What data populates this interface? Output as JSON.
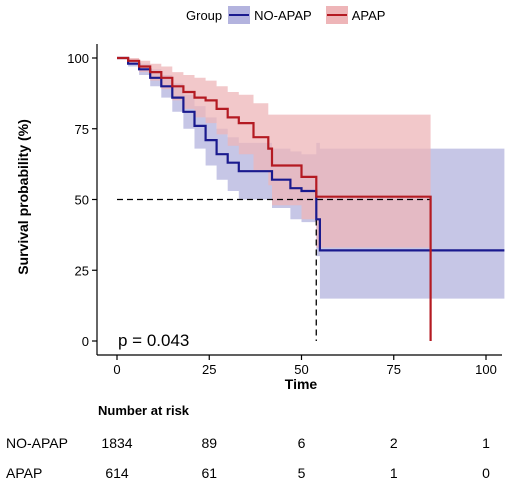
{
  "legend": {
    "title": "Group",
    "entries": [
      {
        "label": "NO-APAP",
        "color": "#1a1a8e",
        "fill": "#b3b3de"
      },
      {
        "label": "APAP",
        "color": "#b41a22",
        "fill": "#eeb5b8"
      }
    ]
  },
  "chart_data": {
    "type": "line",
    "subtype": "kaplan-meier survival curve with confidence bands",
    "xlabel": "Time",
    "ylabel": "Survival probability (%)",
    "xlim": [
      0,
      105
    ],
    "ylim": [
      0,
      100
    ],
    "xticks": [
      0,
      25,
      50,
      75,
      100
    ],
    "yticks": [
      0,
      25,
      50,
      75,
      100
    ],
    "grid": false,
    "legend_position": "top",
    "annotation": "p = 0.043",
    "median_reference": {
      "y": 50,
      "x_values": [
        54,
        85
      ]
    },
    "series": [
      {
        "name": "NO-APAP",
        "color": "#1a1a8e",
        "band_color": "#b3b3de",
        "x": [
          0,
          3,
          6,
          9,
          12,
          15,
          18,
          21,
          24,
          27,
          30,
          33,
          42,
          47,
          50,
          54,
          55,
          105
        ],
        "y": [
          100,
          98,
          96,
          93,
          90,
          86,
          81,
          76,
          71,
          66,
          63,
          60,
          57,
          54,
          53,
          43,
          32,
          32
        ],
        "lower": [
          100,
          97,
          94,
          90,
          86,
          81,
          75,
          68,
          62,
          57,
          53,
          50,
          47,
          43,
          42,
          30,
          15,
          15
        ],
        "upper": [
          100,
          99,
          98,
          96,
          94,
          91,
          87,
          83,
          79,
          75,
          72,
          70,
          68,
          67,
          66,
          70,
          68,
          68
        ]
      },
      {
        "name": "APAP",
        "color": "#b41a22",
        "band_color": "#eeb5b8",
        "x": [
          0,
          3,
          6,
          9,
          12,
          15,
          18,
          21,
          24,
          27,
          30,
          33,
          37,
          41,
          42,
          47,
          50,
          54,
          55,
          85
        ],
        "y": [
          100,
          99,
          97,
          95,
          93,
          90,
          88,
          86,
          85,
          82,
          79,
          77,
          72,
          68,
          62,
          62,
          58,
          51,
          51,
          0
        ],
        "lower": [
          100,
          98,
          95,
          92,
          89,
          85,
          82,
          79,
          77,
          73,
          69,
          66,
          60,
          55,
          48,
          48,
          43,
          33,
          33,
          33
        ],
        "upper": [
          100,
          100,
          99,
          98,
          97,
          95,
          94,
          93,
          92,
          90,
          88,
          87,
          84,
          80,
          80,
          80,
          80,
          80,
          80,
          80
        ]
      }
    ]
  },
  "risk_table": {
    "title": "Number at risk",
    "time_points": [
      0,
      25,
      50,
      75,
      100
    ],
    "rows": [
      {
        "group": "NO-APAP",
        "values": [
          "1834",
          "89",
          "6",
          "2",
          "1"
        ]
      },
      {
        "group": "APAP",
        "values": [
          "614",
          "61",
          "5",
          "1",
          "0"
        ]
      }
    ]
  }
}
